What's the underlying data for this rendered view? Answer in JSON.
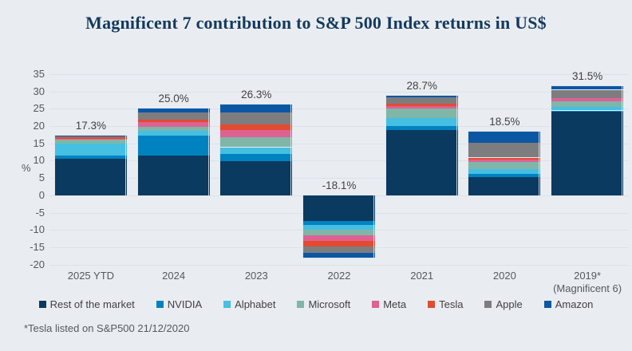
{
  "title": "Magnificent 7 contribution to S&P 500 Index returns in US$",
  "footnote": "*Tesla listed on S&P500 21/12/2020",
  "y_axis": {
    "label": "%"
  },
  "colors": {
    "background": "#e9edf2",
    "title": "#14395e",
    "gridline": "#dbe2e9",
    "axis_text": "#55585c",
    "data_label": "#414042"
  },
  "chart_data": {
    "type": "bar",
    "stacked": true,
    "grid": true,
    "legend_position": "bottom",
    "ylim": [
      -20,
      35
    ],
    "y_ticks": [
      35,
      30,
      25,
      20,
      15,
      10,
      5,
      0,
      -5,
      -10,
      -15,
      -20
    ],
    "categories": [
      [
        "2025 YTD"
      ],
      [
        "2024"
      ],
      [
        "2023"
      ],
      [
        "2022"
      ],
      [
        "2021"
      ],
      [
        "2020"
      ],
      [
        "2019*",
        "(Magnificent 6)"
      ]
    ],
    "total_labels": [
      "17.3%",
      "25.0%",
      "26.3%",
      "-18.1%",
      "28.7%",
      "18.5%",
      "31.5%"
    ],
    "totals": [
      17.3,
      25.0,
      26.3,
      -18.1,
      28.7,
      18.5,
      31.5
    ],
    "series": [
      {
        "name": "Rest of the market",
        "color": "#0a3a60",
        "values": [
          10.5,
          11.5,
          9.8,
          -7.4,
          18.9,
          5.3,
          24.2
        ]
      },
      {
        "name": "NVIDIA",
        "color": "#0082c0",
        "values": [
          0.9,
          5.8,
          2.1,
          -1.1,
          1.1,
          0.9,
          0.3
        ]
      },
      {
        "name": "Alphabet",
        "color": "#45bfe2",
        "values": [
          3.6,
          1.3,
          2.0,
          -1.5,
          2.3,
          1.4,
          1.0
        ]
      },
      {
        "name": "Microsoft",
        "color": "#7fb6a8",
        "values": [
          1.2,
          1.1,
          2.9,
          -1.6,
          2.7,
          2.1,
          1.7
        ]
      },
      {
        "name": "Meta",
        "color": "#dd6293",
        "values": [
          0.2,
          1.5,
          2.0,
          -1.5,
          0.8,
          0.6,
          0.9
        ]
      },
      {
        "name": "Tesla",
        "color": "#e34b31",
        "values": [
          0.6,
          0.6,
          1.6,
          -1.8,
          0.7,
          0.6,
          0.0
        ]
      },
      {
        "name": "Apple",
        "color": "#7d7d80",
        "values": [
          0.1,
          2.2,
          3.6,
          -1.8,
          1.9,
          4.2,
          2.4
        ]
      },
      {
        "name": "Amazon",
        "color": "#0b57a4",
        "values": [
          0.2,
          1.0,
          2.3,
          -1.4,
          0.3,
          3.4,
          1.0
        ]
      }
    ]
  }
}
